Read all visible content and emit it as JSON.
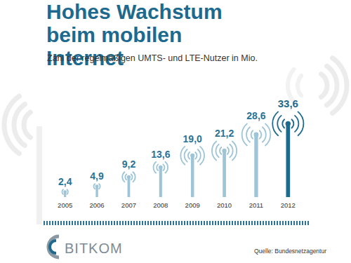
{
  "chart_data": {
    "type": "bar",
    "title": "Hohes Wachstum beim mobilen Internet",
    "subtitle": "Zahl der regelmäßigen UMTS- und LTE-Nutzer in Mio.",
    "categories": [
      "2005",
      "2006",
      "2007",
      "2008",
      "2009",
      "2010",
      "2011",
      "2012"
    ],
    "values": [
      2.4,
      4.9,
      9.2,
      13.6,
      19.0,
      21.2,
      28.6,
      33.6
    ],
    "value_labels": [
      "2,4",
      "4,9",
      "9,2",
      "13,6",
      "19,0",
      "21,2",
      "28,6",
      "33,6"
    ],
    "colors": [
      "#9dc4d7",
      "#9dc4d7",
      "#9dc4d7",
      "#9dc4d7",
      "#9dc4d7",
      "#9dc4d7",
      "#9dc4d7",
      "#1e6a8e"
    ],
    "ylim": [
      0,
      35
    ],
    "data_labels": true,
    "tick_labels": "x",
    "logo": "BITKOM",
    "source": "Quelle: Bundesnetzagentur"
  }
}
